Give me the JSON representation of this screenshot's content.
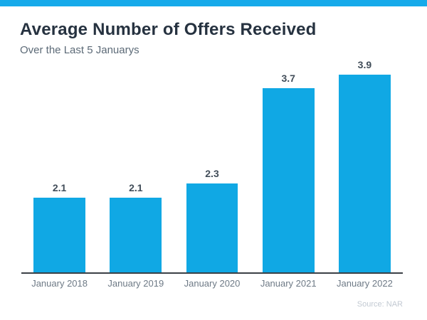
{
  "header": {
    "title": "Average Number of Offers Received",
    "subtitle": "Over the Last 5 Januarys"
  },
  "footer": {
    "source": "Source: NAR"
  },
  "colors": {
    "accent": "#16aaea",
    "bar": "#10a8e4",
    "title": "#263240",
    "subtitle": "#5c6a77",
    "axis": "#3b4046",
    "value_label": "#414d59",
    "tick_label": "#6e7a86",
    "source": "#c2c9d2"
  },
  "chart_data": {
    "type": "bar",
    "categories": [
      "January 2018",
      "January 2019",
      "January 2020",
      "January 2021",
      "January 2022"
    ],
    "values": [
      2.1,
      2.1,
      2.3,
      3.7,
      3.9
    ],
    "title": "Average Number of Offers Received",
    "subtitle": "Over the Last 5 Januarys",
    "xlabel": "",
    "ylabel": "",
    "ylim": [
      1.0,
      4.0
    ],
    "grid": false,
    "legend": false,
    "data_labels": true,
    "bar_color": "#10a8e4",
    "source": "Source: NAR"
  }
}
